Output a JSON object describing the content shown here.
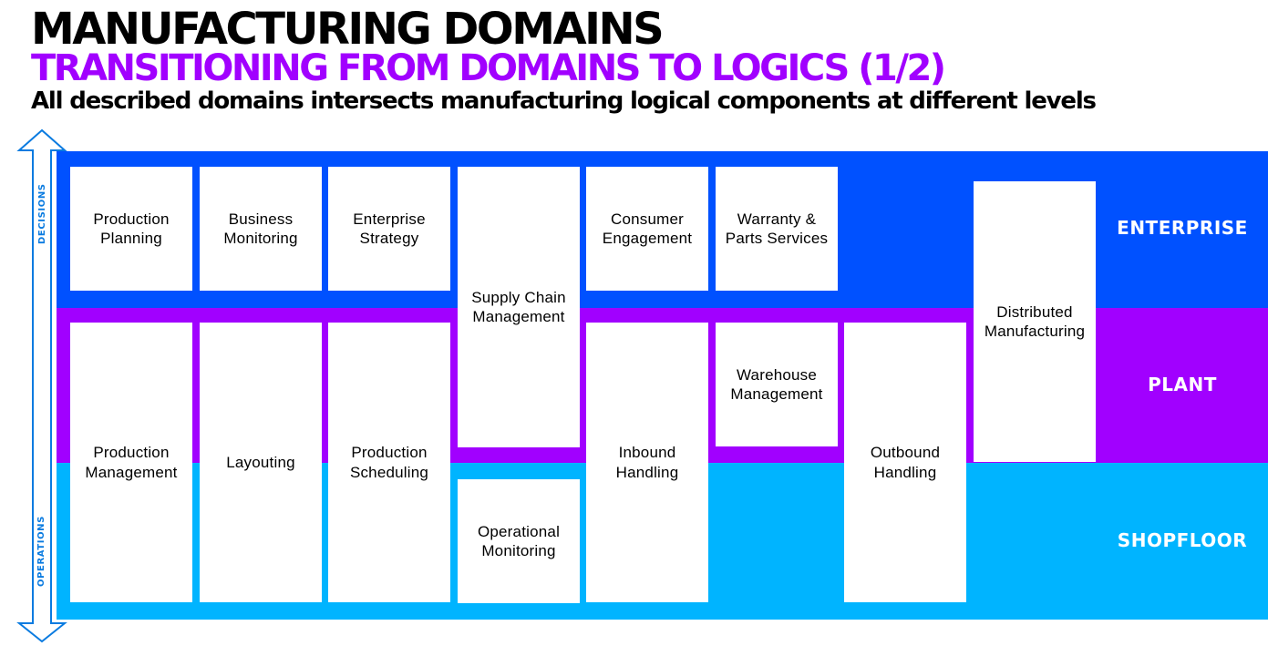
{
  "header": {
    "title": "MANUFACTURING DOMAINS",
    "subtitle": "TRANSITIONING FROM DOMAINS TO LOGICS (1/2)",
    "lead": "All described domains intersects manufacturing logical components at different levels"
  },
  "axis": {
    "top_label": "DECISIONS",
    "bottom_label": "OPERATIONS"
  },
  "levels": {
    "enterprise": "ENTERPRISE",
    "plant": "PLANT",
    "shopfloor": "SHOPFLOOR"
  },
  "colors": {
    "enterprise": "#0051ff",
    "plant": "#a100ff",
    "shopfloor": "#00b4ff",
    "axis": "#0a7be0",
    "subtitle": "#a100ff"
  },
  "domains": {
    "production_planning": "Production\nPlanning",
    "business_monitoring": "Business\nMonitoring",
    "enterprise_strategy": "Enterprise\nStrategy",
    "supply_chain_management": "Supply Chain\nManagement",
    "consumer_engagement": "Consumer\nEngagement",
    "warranty_parts_services": "Warranty &\nParts Services",
    "distributed_manufacturing": "Distributed\nManufacturing",
    "production_management": "Production\nManagement",
    "layouting": "Layouting",
    "production_scheduling": "Production\nScheduling",
    "operational_monitoring": "Operational\nMonitoring",
    "inbound_handling": "Inbound\nHandling",
    "warehouse_management": "Warehouse\nManagement",
    "outbound_handling": "Outbound\nHandling"
  }
}
